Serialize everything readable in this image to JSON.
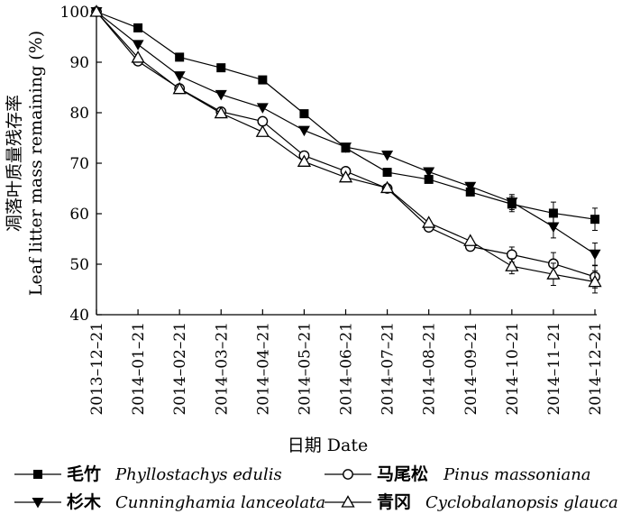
{
  "chart_data": {
    "type": "line",
    "xlabel": "日期 Date",
    "ylabel_cn": "凋落叶质量残存率",
    "ylabel_en": "Leaf litter mass remaining (%)",
    "ylim": [
      40,
      100
    ],
    "y_ticks": [
      40,
      50,
      60,
      70,
      80,
      90,
      100
    ],
    "categories": [
      "2013–12–21",
      "2014–01–21",
      "2014–02–21",
      "2014–03–21",
      "2014–04–21",
      "2014–05–21",
      "2014–06–21",
      "2014–07–21",
      "2014–08–21",
      "2014–09–21",
      "2014–10–21",
      "2014–11–21",
      "2014–12–21"
    ],
    "series": [
      {
        "name_cn": "毛竹",
        "name_latin": "Phyllostachys edulis",
        "marker": "filled-square",
        "values": [
          100,
          96.8,
          91,
          88.9,
          86.5,
          79.8,
          73,
          68.2,
          66.8,
          64.3,
          61.9,
          60.1,
          58.9
        ]
      },
      {
        "name_cn": "马尾松",
        "name_latin": "Pinus massoniana",
        "marker": "open-circle",
        "values": [
          100,
          90.2,
          84.8,
          80.2,
          78.3,
          71.5,
          68.4,
          65,
          57.3,
          53.5,
          51.9,
          50.1,
          47.5
        ]
      },
      {
        "name_cn": "杉木",
        "name_latin": "Cunninghamia lanceolata",
        "marker": "filled-triangle-down",
        "values": [
          100,
          93.5,
          87.3,
          83.6,
          81,
          76.5,
          73.2,
          71.6,
          68.3,
          65.4,
          62.3,
          57.4,
          52
        ]
      },
      {
        "name_cn": "青冈",
        "name_latin": "Cyclobalanopsis glauca",
        "marker": "open-triangle-up",
        "values": [
          100,
          90.9,
          84.7,
          79.9,
          76.2,
          70.3,
          67.2,
          65.1,
          58.2,
          54.6,
          49.6,
          48,
          46.5
        ]
      }
    ],
    "legend_position": "bottom",
    "grid": false
  }
}
